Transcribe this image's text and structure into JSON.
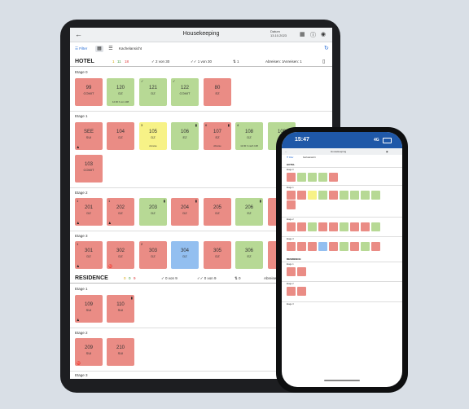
{
  "app": {
    "title": "Housekeeping",
    "date_label": "Datum",
    "date_value": "13.10.2023",
    "filter_label": "Filter",
    "view_label": "Kachelansicht",
    "back_icon": "arrow-left-icon"
  },
  "hotel": {
    "name": "HOTEL",
    "counts": [
      "1",
      "11",
      "18"
    ],
    "stat1": "2 von 30",
    "stat2": "1 von 30",
    "stat3": "1",
    "abreisen": "Abreisen: 1",
    "anreisen": "Anreisen: 1",
    "floors": [
      {
        "label": "Etage 0"
      },
      {
        "label": "Etage 1"
      },
      {
        "label": "Etage 2"
      },
      {
        "label": "Etage 3"
      }
    ]
  },
  "residence": {
    "name": "RESIDENCE",
    "counts": [
      "0",
      "0",
      "9"
    ],
    "stat1": "0 von 9",
    "stat2": "0 von 9",
    "stat3": "0",
    "abreisen": "Abreisen",
    "floors": [
      {
        "label": "Etage 1"
      },
      {
        "label": "Etage 2"
      },
      {
        "label": "Etage 3"
      }
    ]
  },
  "rooms": {
    "r99": {
      "num": "99",
      "type": "COMIT"
    },
    "r120": {
      "num": "120",
      "type": "DZ",
      "foot": "12:30 h von 108"
    },
    "r121": {
      "num": "121",
      "type": "DZ"
    },
    "r122": {
      "num": "122",
      "type": "COMIT"
    },
    "r80": {
      "num": "80",
      "type": "EZ"
    },
    "rSEE": {
      "num": "SEE",
      "type": "SUI"
    },
    "r104": {
      "num": "104",
      "type": "DZ"
    },
    "r105": {
      "num": "105",
      "type": "DZ",
      "tl": "3",
      "foot": "Anreise"
    },
    "r106": {
      "num": "106",
      "type": "EZ"
    },
    "r107": {
      "num": "107",
      "type": "EZ",
      "tl": "6",
      "foot": "Abreise"
    },
    "r108": {
      "num": "108",
      "type": "DZ",
      "tl": "4",
      "foot": "12:30 h nach 108"
    },
    "r109x": {
      "num": "109",
      "type": "DZ"
    },
    "r103": {
      "num": "103",
      "type": "COMIT"
    },
    "r201": {
      "num": "201",
      "type": "DZ",
      "tl": "1"
    },
    "r202": {
      "num": "202",
      "type": "DZ",
      "tl": "1"
    },
    "r203": {
      "num": "203",
      "type": "DZ"
    },
    "r204": {
      "num": "204",
      "type": "DZ"
    },
    "r205": {
      "num": "205",
      "type": "DZ"
    },
    "r206": {
      "num": "206",
      "type": "EZ"
    },
    "r207": {
      "num": "207",
      "type": "DZ"
    },
    "r301": {
      "num": "301",
      "type": "DZ",
      "tl": "1"
    },
    "r302": {
      "num": "302",
      "type": "DZ"
    },
    "r303": {
      "num": "303",
      "type": "DZ",
      "tl": "2"
    },
    "r304": {
      "num": "304",
      "type": "DZ"
    },
    "r305": {
      "num": "305",
      "type": "DZ"
    },
    "r306": {
      "num": "306",
      "type": "EZ"
    },
    "r307": {
      "num": "307",
      "type": "DZ"
    },
    "r109": {
      "num": "109",
      "type": "SUI"
    },
    "r110": {
      "num": "110",
      "type": "SUI"
    },
    "r209": {
      "num": "209",
      "type": "SUI"
    },
    "r210": {
      "num": "210",
      "type": "SUI"
    }
  },
  "phone": {
    "time": "15:47",
    "network": "4G"
  },
  "colors": {
    "dirty": "#ea8c85",
    "clean": "#b7d995",
    "arrival": "#f7f287",
    "inspected": "#93bff0",
    "accent": "#2a6fd6",
    "phone_status": "#1f58a8"
  }
}
